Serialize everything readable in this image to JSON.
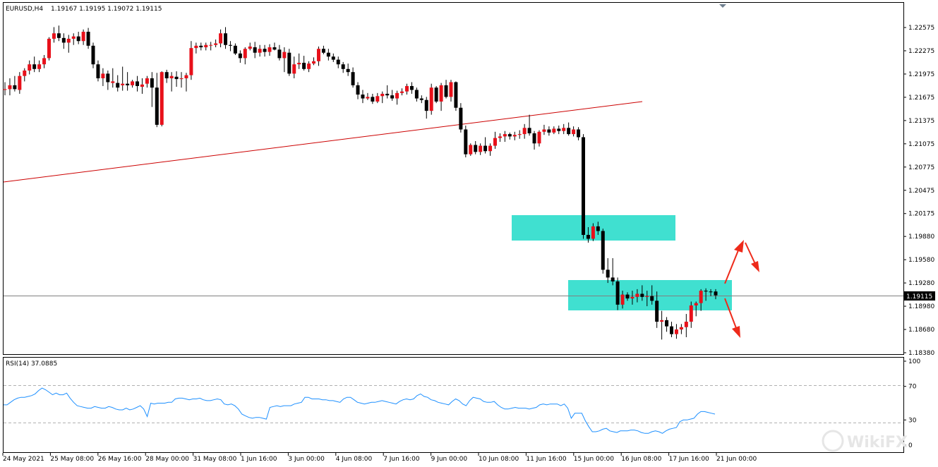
{
  "header": {
    "symbol_timeframe": "EURUSD,H4",
    "ohlc": "1.19167 1.19195 1.19072 1.19115"
  },
  "current_price_label": "1.19115",
  "watermark": "WikiFX",
  "rsi_panel": {
    "title": "RSI(14) 37.0885"
  },
  "colors": {
    "bull_candle": "#e8101a",
    "bear_candle": "#000000",
    "trendline": "#cc0000",
    "zone_fill": "#40e0d0",
    "rsi_line": "#1e90ff",
    "arrows": "#ee2a1a",
    "price_line": "#808080"
  },
  "chart_data": [
    {
      "type": "candlestick",
      "title": "EURUSD,H4",
      "ylim": [
        1.1825,
        1.2285
      ],
      "y_ticks": [
        "1.22575",
        "1.22275",
        "1.21975",
        "1.21675",
        "1.21375",
        "1.21075",
        "1.20775",
        "1.20475",
        "1.20175",
        "1.19880",
        "1.19580",
        "1.19280",
        "1.18980",
        "1.18680",
        "1.18380"
      ],
      "x_ticks": [
        "24 May 2021",
        "25 May 08:00",
        "26 May 16:00",
        "28 May 00:00",
        "31 May 08:00",
        "1 Jun 16:00",
        "3 Jun 00:00",
        "4 Jun 08:00",
        "7 Jun 16:00",
        "9 Jun 00:00",
        "10 Jun 08:00",
        "11 Jun 16:00",
        "15 Jun 00:00",
        "16 Jun 08:00",
        "17 Jun 16:00",
        "21 Jun 00:00"
      ],
      "candles": [
        [
          1.2177,
          1.2187,
          1.217,
          1.2178
        ],
        [
          1.2178,
          1.2192,
          1.217,
          1.2183
        ],
        [
          1.2183,
          1.2195,
          1.2175,
          1.2178
        ],
        [
          1.2177,
          1.22,
          1.2172,
          1.2195
        ],
        [
          1.2195,
          1.2205,
          1.2188,
          1.2202
        ],
        [
          1.2202,
          1.2215,
          1.2197,
          1.221
        ],
        [
          1.221,
          1.222,
          1.22,
          1.2204
        ],
        [
          1.2204,
          1.2215,
          1.22,
          1.221
        ],
        [
          1.221,
          1.2222,
          1.2205,
          1.2218
        ],
        [
          1.2218,
          1.2245,
          1.2215,
          1.2243
        ],
        [
          1.2243,
          1.2258,
          1.2238,
          1.225
        ],
        [
          1.225,
          1.226,
          1.224,
          1.2244
        ],
        [
          1.2244,
          1.225,
          1.223,
          1.2238
        ],
        [
          1.2238,
          1.2248,
          1.2225,
          1.2243
        ],
        [
          1.2243,
          1.225,
          1.2235,
          1.2246
        ],
        [
          1.2246,
          1.2252,
          1.2236,
          1.224
        ],
        [
          1.224,
          1.2255,
          1.2235,
          1.2252
        ],
        [
          1.2252,
          1.2257,
          1.223,
          1.2234
        ],
        [
          1.2234,
          1.2238,
          1.2205,
          1.221
        ],
        [
          1.221,
          1.2215,
          1.2188,
          1.2192
        ],
        [
          1.2192,
          1.2205,
          1.2182,
          1.2198
        ],
        [
          1.2198,
          1.2202,
          1.2177,
          1.2187
        ],
        [
          1.2186,
          1.2205,
          1.218,
          1.2188
        ],
        [
          1.2186,
          1.2196,
          1.2175,
          1.218
        ],
        [
          1.2183,
          1.2207,
          1.2176,
          1.2185
        ],
        [
          1.2185,
          1.22,
          1.2176,
          1.2183
        ],
        [
          1.2183,
          1.219,
          1.218,
          1.2188
        ],
        [
          1.2188,
          1.2195,
          1.2175,
          1.2182
        ],
        [
          1.2181,
          1.2192,
          1.2172,
          1.2184
        ],
        [
          1.2185,
          1.2195,
          1.218,
          1.2192
        ],
        [
          1.2192,
          1.22,
          1.2155,
          1.218
        ],
        [
          1.218,
          1.2199,
          1.2129,
          1.2132
        ],
        [
          1.2132,
          1.2201,
          1.213,
          1.22
        ],
        [
          1.22,
          1.2203,
          1.2186,
          1.2192
        ],
        [
          1.2192,
          1.22,
          1.2175,
          1.2195
        ],
        [
          1.2194,
          1.2201,
          1.2181,
          1.2191
        ],
        [
          1.2191,
          1.22,
          1.218,
          1.2192
        ],
        [
          1.2192,
          1.2199,
          1.2175,
          1.2196
        ],
        [
          1.2196,
          1.224,
          1.219,
          1.2231
        ],
        [
          1.2231,
          1.2238,
          1.2224,
          1.2234
        ],
        [
          1.2234,
          1.2238,
          1.2228,
          1.2232
        ],
        [
          1.2232,
          1.2238,
          1.2228,
          1.2235
        ],
        [
          1.2235,
          1.2239,
          1.2228,
          1.2235
        ],
        [
          1.2235,
          1.2242,
          1.2232,
          1.2237
        ],
        [
          1.2237,
          1.2255,
          1.2232,
          1.225
        ],
        [
          1.225,
          1.2258,
          1.223,
          1.2235
        ],
        [
          1.2235,
          1.224,
          1.2227,
          1.2234
        ],
        [
          1.2234,
          1.2237,
          1.2222,
          1.2224
        ],
        [
          1.2224,
          1.2228,
          1.2212,
          1.2218
        ],
        [
          1.2218,
          1.2232,
          1.221,
          1.223
        ],
        [
          1.223,
          1.2238,
          1.2228,
          1.2233
        ],
        [
          1.2232,
          1.2239,
          1.2218,
          1.2225
        ],
        [
          1.2225,
          1.2235,
          1.222,
          1.223
        ],
        [
          1.223,
          1.2235,
          1.222,
          1.2226
        ],
        [
          1.2226,
          1.2236,
          1.2221,
          1.2232
        ],
        [
          1.2232,
          1.2238,
          1.2228,
          1.2229
        ],
        [
          1.2229,
          1.2235,
          1.2215,
          1.2218
        ],
        [
          1.2218,
          1.2232,
          1.22,
          1.2226
        ],
        [
          1.2225,
          1.223,
          1.2195,
          1.2198
        ],
        [
          1.2198,
          1.222,
          1.2192,
          1.221
        ],
        [
          1.221,
          1.2224,
          1.2204,
          1.2212
        ],
        [
          1.2212,
          1.2221,
          1.2202,
          1.2204
        ],
        [
          1.2204,
          1.2214,
          1.22,
          1.2211
        ],
        [
          1.2211,
          1.2219,
          1.2209,
          1.2214
        ],
        [
          1.2214,
          1.2233,
          1.2208,
          1.223
        ],
        [
          1.223,
          1.2234,
          1.2223,
          1.2225
        ],
        [
          1.2225,
          1.223,
          1.2215,
          1.222
        ],
        [
          1.222,
          1.2224,
          1.2213,
          1.2216
        ],
        [
          1.2216,
          1.222,
          1.2205,
          1.221
        ],
        [
          1.221,
          1.2213,
          1.2199,
          1.2204
        ],
        [
          1.2204,
          1.2211,
          1.2195,
          1.22
        ],
        [
          1.22,
          1.2206,
          1.218,
          1.2183
        ],
        [
          1.2183,
          1.2187,
          1.2165,
          1.2171
        ],
        [
          1.2171,
          1.2177,
          1.216,
          1.2166
        ],
        [
          1.2166,
          1.2173,
          1.2164,
          1.2168
        ],
        [
          1.2168,
          1.2172,
          1.2159,
          1.2162
        ],
        [
          1.2162,
          1.2173,
          1.216,
          1.2169
        ],
        [
          1.2169,
          1.2175,
          1.216,
          1.2172
        ],
        [
          1.2172,
          1.2183,
          1.2166,
          1.217
        ],
        [
          1.217,
          1.2177,
          1.2163,
          1.2166
        ],
        [
          1.2166,
          1.2176,
          1.2158,
          1.2173
        ],
        [
          1.2173,
          1.2179,
          1.217,
          1.2175
        ],
        [
          1.2175,
          1.2185,
          1.2171,
          1.2182
        ],
        [
          1.2182,
          1.2187,
          1.2172,
          1.2177
        ],
        [
          1.2177,
          1.218,
          1.2162,
          1.2166
        ],
        [
          1.2166,
          1.217,
          1.216,
          1.2164
        ],
        [
          1.2164,
          1.2168,
          1.214,
          1.215
        ],
        [
          1.215,
          1.2185,
          1.2145,
          1.218
        ],
        [
          1.218,
          1.2182,
          1.216,
          1.2162
        ],
        [
          1.2162,
          1.2186,
          1.215,
          1.2183
        ],
        [
          1.2183,
          1.219,
          1.2166,
          1.2168
        ],
        [
          1.2168,
          1.219,
          1.2162,
          1.2187
        ],
        [
          1.2187,
          1.2188,
          1.215,
          1.2154
        ],
        [
          1.2154,
          1.216,
          1.2122,
          1.2126
        ],
        [
          1.2126,
          1.2131,
          1.209,
          1.2094
        ],
        [
          1.2094,
          1.2108,
          1.2092,
          1.2106
        ],
        [
          1.2106,
          1.2111,
          1.2094,
          1.2097
        ],
        [
          1.2097,
          1.2108,
          1.2093,
          1.2105
        ],
        [
          1.2105,
          1.2116,
          1.2095,
          1.2098
        ],
        [
          1.2098,
          1.2108,
          1.2092,
          1.2105
        ],
        [
          1.2105,
          1.2123,
          1.2101,
          1.2115
        ],
        [
          1.2115,
          1.2121,
          1.211,
          1.2117
        ],
        [
          1.2117,
          1.2124,
          1.211,
          1.212
        ],
        [
          1.212,
          1.2122,
          1.2113,
          1.2117
        ],
        [
          1.2117,
          1.2123,
          1.2112,
          1.2119
        ],
        [
          1.2119,
          1.2125,
          1.2114,
          1.212
        ],
        [
          1.212,
          1.2133,
          1.2114,
          1.2128
        ],
        [
          1.2128,
          1.2145,
          1.2118,
          1.2121
        ],
        [
          1.2121,
          1.2124,
          1.21,
          1.2108
        ],
        [
          1.2108,
          1.2125,
          1.2104,
          1.2123
        ],
        [
          1.2123,
          1.2132,
          1.2119,
          1.2126
        ],
        [
          1.2126,
          1.213,
          1.2118,
          1.2122
        ],
        [
          1.2122,
          1.213,
          1.212,
          1.2127
        ],
        [
          1.2127,
          1.2131,
          1.212,
          1.2124
        ],
        [
          1.2124,
          1.2133,
          1.212,
          1.2128
        ],
        [
          1.2128,
          1.2135,
          1.2118,
          1.212
        ],
        [
          1.212,
          1.213,
          1.2117,
          1.2126
        ],
        [
          1.2126,
          1.2129,
          1.2112,
          1.2116
        ],
        [
          1.2116,
          1.212,
          1.1985,
          1.199
        ],
        [
          1.199,
          1.2,
          1.198,
          1.1985
        ],
        [
          1.1985,
          1.2005,
          1.1982,
          1.2001
        ],
        [
          1.2001,
          1.2007,
          1.199,
          1.1995
        ],
        [
          1.1995,
          1.1998,
          1.194,
          1.1945
        ],
        [
          1.1945,
          1.196,
          1.1928,
          1.1935
        ],
        [
          1.1935,
          1.196,
          1.1925,
          1.193
        ],
        [
          1.193,
          1.1935,
          1.1893,
          1.19
        ],
        [
          1.19,
          1.1918,
          1.1895,
          1.1913
        ],
        [
          1.1913,
          1.1916,
          1.1905,
          1.1908
        ],
        [
          1.1908,
          1.1918,
          1.19,
          1.191
        ],
        [
          1.191,
          1.192,
          1.1903,
          1.1914
        ],
        [
          1.1914,
          1.1925,
          1.1905,
          1.191
        ],
        [
          1.191,
          1.1918,
          1.1898,
          1.1911
        ],
        [
          1.1911,
          1.1925,
          1.19,
          1.1905
        ],
        [
          1.1905,
          1.1917,
          1.187,
          1.1878
        ],
        [
          1.1878,
          1.1892,
          1.1855,
          1.188
        ],
        [
          1.188,
          1.1884,
          1.1865,
          1.1872
        ],
        [
          1.1872,
          1.1878,
          1.1858,
          1.1862
        ],
        [
          1.1862,
          1.1875,
          1.1856,
          1.1868
        ],
        [
          1.1868,
          1.1875,
          1.1862,
          1.1871
        ],
        [
          1.1871,
          1.1888,
          1.1858,
          1.1878
        ],
        [
          1.1878,
          1.1904,
          1.187,
          1.1899
        ],
        [
          1.1899,
          1.1904,
          1.1885,
          1.1902
        ],
        [
          1.1902,
          1.192,
          1.1892,
          1.1918
        ],
        [
          1.1918,
          1.1921,
          1.1905,
          1.1917
        ],
        [
          1.1917,
          1.192,
          1.1911,
          1.1916
        ],
        [
          1.1917,
          1.192,
          1.1907,
          1.1912
        ]
      ]
    },
    {
      "type": "line",
      "title": "RSI(14) 37.0885",
      "ylim": [
        0,
        100
      ],
      "y_ticks": [
        "100",
        "70",
        "30",
        "0"
      ],
      "levels": [
        70,
        30
      ],
      "values": [
        48,
        48,
        51,
        54,
        56,
        57,
        57,
        58,
        59,
        61,
        65,
        68,
        66,
        63,
        60,
        62,
        60,
        60,
        62,
        56,
        51,
        47,
        46,
        45,
        44,
        44,
        46,
        45,
        44,
        44,
        46,
        45,
        43,
        42,
        42,
        44,
        42,
        43,
        45,
        47,
        43,
        34,
        50,
        49,
        50,
        50,
        50,
        51,
        51,
        55,
        56,
        56,
        55,
        54,
        55,
        55,
        56,
        54,
        53,
        53,
        54,
        55,
        54,
        49,
        48,
        49,
        47,
        43,
        37,
        35,
        33,
        32,
        33,
        33,
        32,
        31,
        45,
        46,
        47,
        46,
        47,
        47,
        47,
        49,
        50,
        51,
        57,
        57,
        55,
        55,
        55,
        54,
        54,
        53,
        53,
        52,
        51,
        55,
        57,
        57,
        54,
        51,
        50,
        49,
        50,
        51,
        51,
        52,
        53,
        52,
        51,
        50,
        49,
        52,
        54,
        55,
        54,
        55,
        59,
        61,
        58,
        57,
        54,
        53,
        51,
        50,
        49,
        48,
        52,
        55,
        53,
        49,
        47,
        53,
        57,
        56,
        55,
        52,
        51,
        51,
        52,
        48,
        45,
        43,
        43,
        44,
        45,
        44,
        44,
        44,
        43,
        44,
        45,
        48,
        49,
        48,
        49,
        49,
        49,
        47,
        49,
        44,
        32,
        38,
        38,
        38,
        29,
        22,
        16,
        16,
        17,
        19,
        20,
        17,
        16,
        15,
        17,
        17,
        17,
        18,
        18,
        17,
        15,
        14,
        14,
        16,
        17,
        16,
        14,
        17,
        19,
        20,
        21,
        28,
        30,
        30,
        31,
        32,
        37,
        40,
        40,
        39,
        38,
        37
      ]
    }
  ]
}
